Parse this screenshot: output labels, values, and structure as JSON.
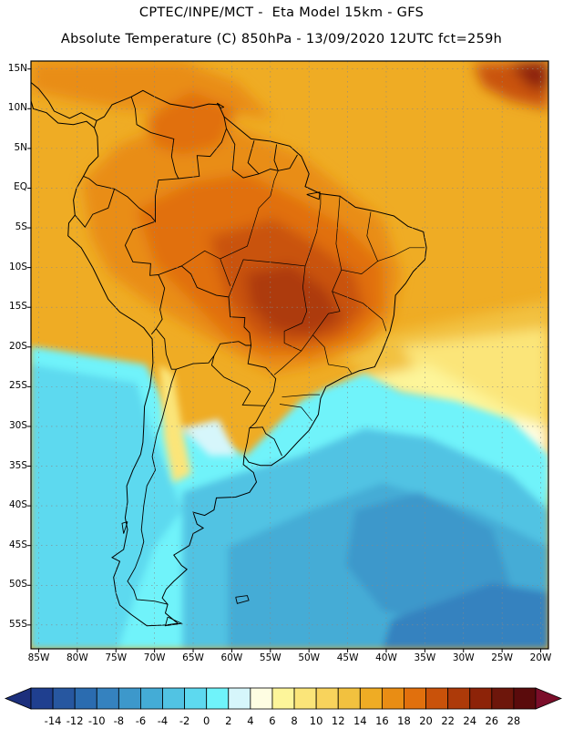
{
  "header": {
    "line1": "CPTEC/INPE/MCT -  Eta Model 15km - GFS",
    "line2": "Absolute Temperature (C) 850hPa - 13/09/2020 12UTC fct=259h"
  },
  "map": {
    "lon_range": [
      -86,
      -19
    ],
    "lat_range": [
      -58,
      16
    ],
    "lat_ticks": [
      {
        "lat": 15,
        "label": "15N"
      },
      {
        "lat": 10,
        "label": "10N"
      },
      {
        "lat": 5,
        "label": "5N"
      },
      {
        "lat": 0,
        "label": "EQ"
      },
      {
        "lat": -5,
        "label": "5S"
      },
      {
        "lat": -10,
        "label": "10S"
      },
      {
        "lat": -15,
        "label": "15S"
      },
      {
        "lat": -20,
        "label": "20S"
      },
      {
        "lat": -25,
        "label": "25S"
      },
      {
        "lat": -30,
        "label": "30S"
      },
      {
        "lat": -35,
        "label": "35S"
      },
      {
        "lat": -40,
        "label": "40S"
      },
      {
        "lat": -45,
        "label": "45S"
      },
      {
        "lat": -50,
        "label": "50S"
      },
      {
        "lat": -55,
        "label": "55S"
      }
    ],
    "lon_ticks": [
      {
        "lon": -85,
        "label": "85W"
      },
      {
        "lon": -80,
        "label": "80W"
      },
      {
        "lon": -75,
        "label": "75W"
      },
      {
        "lon": -70,
        "label": "70W"
      },
      {
        "lon": -65,
        "label": "65W"
      },
      {
        "lon": -60,
        "label": "60W"
      },
      {
        "lon": -55,
        "label": "55W"
      },
      {
        "lon": -50,
        "label": "50W"
      },
      {
        "lon": -45,
        "label": "45W"
      },
      {
        "lon": -40,
        "label": "40W"
      },
      {
        "lon": -35,
        "label": "35W"
      },
      {
        "lon": -30,
        "label": "30W"
      },
      {
        "lon": -25,
        "label": "25W"
      },
      {
        "lon": -20,
        "label": "20W"
      }
    ],
    "coastline": [
      [
        -77.5,
        8.5
      ],
      [
        -76.5,
        9
      ],
      [
        -75.5,
        10.5
      ],
      [
        -73,
        11.5
      ],
      [
        -71.5,
        12.3
      ],
      [
        -70,
        11.5
      ],
      [
        -68,
        10.6
      ],
      [
        -65,
        10.1
      ],
      [
        -63,
        10.6
      ],
      [
        -61.7,
        10.5
      ],
      [
        -61,
        9
      ],
      [
        -59.5,
        7.8
      ],
      [
        -57.5,
        6.2
      ],
      [
        -55,
        5.9
      ],
      [
        -52.5,
        5.3
      ],
      [
        -51,
        4
      ],
      [
        -50,
        1.8
      ],
      [
        -50.5,
        0.2
      ],
      [
        -48.5,
        -0.7
      ],
      [
        -46,
        -1
      ],
      [
        -44,
        -2.4
      ],
      [
        -41.5,
        -2.9
      ],
      [
        -39,
        -3.5
      ],
      [
        -37.2,
        -4.8
      ],
      [
        -35.2,
        -5.5
      ],
      [
        -34.8,
        -7.5
      ],
      [
        -35,
        -9
      ],
      [
        -36.5,
        -10.5
      ],
      [
        -37.5,
        -12
      ],
      [
        -38.8,
        -13.5
      ],
      [
        -39,
        -16
      ],
      [
        -39.5,
        -18
      ],
      [
        -40.5,
        -20.5
      ],
      [
        -41.5,
        -22.5
      ],
      [
        -43.5,
        -23
      ],
      [
        -45.5,
        -23.8
      ],
      [
        -47.8,
        -25
      ],
      [
        -48.5,
        -26.5
      ],
      [
        -48.8,
        -28.5
      ],
      [
        -50,
        -30.5
      ],
      [
        -51.5,
        -32
      ],
      [
        -53.2,
        -33.8
      ],
      [
        -54.9,
        -34.9
      ],
      [
        -56.3,
        -34.9
      ],
      [
        -57.8,
        -34.5
      ],
      [
        -58.4,
        -33.7
      ],
      [
        -58.5,
        -34.8
      ],
      [
        -57.2,
        -35.8
      ],
      [
        -56.8,
        -37
      ],
      [
        -57.7,
        -38.3
      ],
      [
        -59.5,
        -38.9
      ],
      [
        -62,
        -39
      ],
      [
        -62.3,
        -40.5
      ],
      [
        -63.5,
        -41.2
      ],
      [
        -65,
        -40.8
      ],
      [
        -64.5,
        -42.3
      ],
      [
        -63.7,
        -42.8
      ],
      [
        -65,
        -43.5
      ],
      [
        -65.5,
        -45
      ],
      [
        -67.5,
        -46.2
      ],
      [
        -66.5,
        -47.5
      ],
      [
        -65.8,
        -48
      ],
      [
        -67.5,
        -49.5
      ],
      [
        -68.5,
        -50.5
      ],
      [
        -69,
        -51.6
      ],
      [
        -68.3,
        -52.4
      ],
      [
        -68.6,
        -53.5
      ],
      [
        -67,
        -54.8
      ],
      [
        -68.5,
        -55
      ],
      [
        -71,
        -55.1
      ],
      [
        -73,
        -53.7
      ],
      [
        -74.5,
        -52.5
      ],
      [
        -75,
        -51
      ],
      [
        -75.3,
        -49
      ],
      [
        -74.5,
        -47
      ],
      [
        -75.5,
        -46.5
      ],
      [
        -74,
        -45.5
      ],
      [
        -73.5,
        -43
      ],
      [
        -73.8,
        -41.5
      ],
      [
        -73.5,
        -39.5
      ],
      [
        -73.6,
        -37.5
      ],
      [
        -72.8,
        -35.5
      ],
      [
        -71.8,
        -33.5
      ],
      [
        -71.5,
        -32
      ],
      [
        -71.4,
        -30
      ],
      [
        -71.3,
        -27.5
      ],
      [
        -70.6,
        -25
      ],
      [
        -70.2,
        -22
      ],
      [
        -70.3,
        -19
      ],
      [
        -71.4,
        -17.6
      ],
      [
        -72.5,
        -16.8
      ],
      [
        -74.5,
        -15.6
      ],
      [
        -76,
        -14
      ],
      [
        -77,
        -12
      ],
      [
        -78,
        -10
      ],
      [
        -79.5,
        -7.5
      ],
      [
        -81.2,
        -6
      ],
      [
        -81.1,
        -4.4
      ],
      [
        -80.3,
        -3.4
      ],
      [
        -80.5,
        -1.5
      ],
      [
        -80.1,
        0
      ],
      [
        -79.2,
        1.5
      ],
      [
        -78.5,
        2.8
      ],
      [
        -77.3,
        4
      ],
      [
        -77.4,
        6.5
      ],
      [
        -77.8,
        7.6
      ],
      [
        -77.5,
        8.5
      ]
    ],
    "central_america": [
      [
        -77.5,
        8.5
      ],
      [
        -79.5,
        9.5
      ],
      [
        -81,
        8.8
      ],
      [
        -83,
        9.7
      ],
      [
        -83.7,
        10.9
      ],
      [
        -85,
        12.5
      ],
      [
        -86,
        13.3
      ]
    ],
    "central_america_pacific": [
      [
        -77.8,
        7.6
      ],
      [
        -78.8,
        8.4
      ],
      [
        -80.5,
        8
      ],
      [
        -82.5,
        8.2
      ],
      [
        -84,
        9.5
      ],
      [
        -85.7,
        10
      ],
      [
        -86,
        11
      ]
    ],
    "borders": [
      [
        [
          -73,
          11.5
        ],
        [
          -72.5,
          10
        ],
        [
          -72.3,
          8
        ],
        [
          -70.5,
          7
        ],
        [
          -67.5,
          6.2
        ],
        [
          -67.8,
          4
        ],
        [
          -67.3,
          2
        ],
        [
          -66.9,
          1.2
        ],
        [
          -69.5,
          1
        ],
        [
          -69.9,
          -1
        ],
        [
          -69.9,
          -4.2
        ],
        [
          -70.5,
          -3.5
        ],
        [
          -72,
          -2.5
        ],
        [
          -73.5,
          -1.1
        ],
        [
          -75.2,
          -0.1
        ],
        [
          -77.5,
          0.4
        ],
        [
          -78.5,
          1.2
        ],
        [
          -79.2,
          1.5
        ]
      ],
      [
        [
          -61,
          9
        ],
        [
          -60.7,
          7.5
        ],
        [
          -61.3,
          5.8
        ],
        [
          -62.8,
          4
        ],
        [
          -64.5,
          4.1
        ],
        [
          -64.2,
          1.5
        ],
        [
          -66.9,
          1.2
        ]
      ],
      [
        [
          -60.7,
          7.5
        ],
        [
          -59.6,
          5.5
        ],
        [
          -59.9,
          2.3
        ],
        [
          -58.5,
          1.3
        ],
        [
          -56.5,
          1.8
        ],
        [
          -55,
          2.4
        ],
        [
          -54,
          2.2
        ],
        [
          -52.5,
          2.5
        ],
        [
          -51.5,
          4.2
        ]
      ],
      [
        [
          -57.1,
          6
        ],
        [
          -57.9,
          3.2
        ],
        [
          -56.5,
          1.8
        ]
      ],
      [
        [
          -54.2,
          5.5
        ],
        [
          -54.5,
          3.5
        ],
        [
          -54,
          2.2
        ]
      ],
      [
        [
          -69.9,
          -4.2
        ],
        [
          -72.8,
          -5.2
        ],
        [
          -73.8,
          -7.2
        ],
        [
          -72.8,
          -9.3
        ],
        [
          -70.5,
          -9.5
        ],
        [
          -70.6,
          -11
        ],
        [
          -69.5,
          -10.9
        ],
        [
          -68.7,
          -12.6
        ],
        [
          -69.3,
          -15.3
        ],
        [
          -69,
          -16.5
        ],
        [
          -69.8,
          -17.7
        ],
        [
          -70.4,
          -18.4
        ]
      ],
      [
        [
          -80.3,
          -3.4
        ],
        [
          -79,
          -4.9
        ],
        [
          -78,
          -3.3
        ],
        [
          -76,
          -2.5
        ],
        [
          -75.2,
          -0.1
        ]
      ],
      [
        [
          -69.5,
          -10.9
        ],
        [
          -66.5,
          -9.8
        ],
        [
          -65.3,
          -10.8
        ],
        [
          -64.5,
          -12.5
        ],
        [
          -62,
          -13.5
        ],
        [
          -60.4,
          -13.7
        ],
        [
          -60.2,
          -16.2
        ],
        [
          -58.3,
          -16.3
        ],
        [
          -58.4,
          -17.5
        ],
        [
          -57.7,
          -18.2
        ],
        [
          -57.5,
          -19.8
        ]
      ],
      [
        [
          -69.8,
          -17.7
        ],
        [
          -68.7,
          -19
        ],
        [
          -68.5,
          -20.9
        ],
        [
          -67.8,
          -22.8
        ],
        [
          -67.2,
          -22.8
        ],
        [
          -65,
          -22.1
        ],
        [
          -63,
          -22
        ],
        [
          -62.3,
          -21.1
        ],
        [
          -61.5,
          -19.6
        ],
        [
          -59.1,
          -19.3
        ],
        [
          -58.2,
          -19.8
        ],
        [
          -57.5,
          -19.8
        ]
      ],
      [
        [
          -62.3,
          -21.1
        ],
        [
          -62.6,
          -22.3
        ],
        [
          -61,
          -23.8
        ],
        [
          -58,
          -25.2
        ],
        [
          -57.6,
          -25.6
        ],
        [
          -58.6,
          -27.3
        ],
        [
          -55.7,
          -27.4
        ],
        [
          -54.6,
          -25.6
        ],
        [
          -54.3,
          -24
        ],
        [
          -55.6,
          -22.6
        ],
        [
          -57.9,
          -22.1
        ],
        [
          -57.5,
          -19.8
        ]
      ],
      [
        [
          -67.2,
          -22.8
        ],
        [
          -67.8,
          -24.5
        ],
        [
          -68.5,
          -27.1
        ],
        [
          -69,
          -29
        ],
        [
          -69.7,
          -31
        ],
        [
          -70.3,
          -33.8
        ],
        [
          -69.9,
          -35.5
        ],
        [
          -71,
          -37.5
        ],
        [
          -71.4,
          -40
        ],
        [
          -71.7,
          -43
        ],
        [
          -71.4,
          -44.5
        ],
        [
          -71.8,
          -46
        ],
        [
          -72.5,
          -47.8
        ],
        [
          -73.5,
          -49.5
        ],
        [
          -72.7,
          -50.6
        ],
        [
          -72.3,
          -51.8
        ],
        [
          -70,
          -52
        ],
        [
          -68.3,
          -52.4
        ]
      ],
      [
        [
          -58.4,
          -33.7
        ],
        [
          -58,
          -32
        ],
        [
          -57.7,
          -30.2
        ],
        [
          -56,
          -30.1
        ],
        [
          -55.6,
          -30.9
        ],
        [
          -54.5,
          -31.6
        ],
        [
          -53.5,
          -33.7
        ]
      ],
      [
        [
          -55.7,
          -27.4
        ],
        [
          -56.9,
          -29.5
        ],
        [
          -57.7,
          -30.2
        ]
      ]
    ],
    "states": [
      [
        [
          -54,
          2.2
        ],
        [
          -54.5,
          1
        ],
        [
          -55,
          -1
        ],
        [
          -56.5,
          -2.5
        ],
        [
          -58,
          -7.3
        ],
        [
          -61.5,
          -8.9
        ],
        [
          -63.5,
          -7.9
        ],
        [
          -66.5,
          -9.8
        ]
      ],
      [
        [
          -60.4,
          -13.7
        ],
        [
          -58.5,
          -9
        ],
        [
          -54.2,
          -9.4
        ],
        [
          -50.5,
          -9.8
        ],
        [
          -50.8,
          -12.5
        ],
        [
          -50.3,
          -15.5
        ],
        [
          -50.9,
          -17
        ],
        [
          -53.2,
          -18
        ],
        [
          -53.2,
          -19.5
        ],
        [
          -51,
          -20.5
        ],
        [
          -53.5,
          -22.7
        ],
        [
          -54.5,
          -23.5
        ]
      ],
      [
        [
          -50.5,
          -9.8
        ],
        [
          -49,
          -5.5
        ],
        [
          -48.5,
          -2
        ],
        [
          -48.5,
          -0.7
        ]
      ],
      [
        [
          -46,
          -1
        ],
        [
          -46.5,
          -7
        ],
        [
          -45.8,
          -10.3
        ],
        [
          -47,
          -13
        ],
        [
          -46,
          -15.5
        ]
      ],
      [
        [
          -42,
          -3
        ],
        [
          -42.5,
          -6
        ],
        [
          -41.1,
          -9.2
        ],
        [
          -43.2,
          -10.8
        ],
        [
          -45.8,
          -10.3
        ]
      ],
      [
        [
          -41.1,
          -9.2
        ],
        [
          -39,
          -8.5
        ],
        [
          -37,
          -7.5
        ],
        [
          -35,
          -7.5
        ]
      ],
      [
        [
          -46,
          -15.5
        ],
        [
          -47.5,
          -15.8
        ],
        [
          -49.5,
          -18.5
        ],
        [
          -51,
          -20.5
        ]
      ],
      [
        [
          -47,
          -13
        ],
        [
          -43,
          -14.5
        ],
        [
          -40.5,
          -16.5
        ],
        [
          -40,
          -18
        ]
      ],
      [
        [
          -49.5,
          -18.5
        ],
        [
          -48,
          -20
        ],
        [
          -47.5,
          -22.2
        ],
        [
          -45,
          -22.6
        ],
        [
          -44.5,
          -23.3
        ]
      ],
      [
        [
          -53.5,
          -26.3
        ],
        [
          -50,
          -26
        ],
        [
          -48.6,
          -26
        ]
      ],
      [
        [
          -53.8,
          -27.2
        ],
        [
          -51,
          -27.6
        ],
        [
          -49.6,
          -29.3
        ]
      ],
      [
        [
          -61.5,
          -8.9
        ],
        [
          -60.2,
          -12.3
        ]
      ]
    ],
    "islands": [
      [
        [
          -61,
          10.2
        ],
        [
          -61.9,
          10.7
        ],
        [
          -61.5,
          10.1
        ],
        [
          -61,
          10.2
        ]
      ],
      [
        [
          -59.5,
          -51.5
        ],
        [
          -58,
          -51.3
        ],
        [
          -57.8,
          -51.9
        ],
        [
          -59.3,
          -52.3
        ],
        [
          -59.5,
          -51.5
        ]
      ],
      [
        [
          -68.3,
          -54
        ],
        [
          -66.5,
          -54.8
        ],
        [
          -68.6,
          -55.1
        ],
        [
          -68.3,
          -54
        ]
      ],
      [
        [
          -73.5,
          -42
        ],
        [
          -74.2,
          -42.2
        ],
        [
          -74,
          -43.5
        ],
        [
          -73.5,
          -42
        ]
      ],
      [
        [
          -50.3,
          -0.8
        ],
        [
          -48.7,
          -1.4
        ],
        [
          -48.6,
          -0.5
        ],
        [
          -50.3,
          -0.8
        ]
      ]
    ]
  },
  "colorbar": {
    "labels": [
      "-14",
      "-12",
      "-10",
      "-8",
      "-6",
      "-4",
      "-2",
      "0",
      "2",
      "4",
      "6",
      "8",
      "10",
      "12",
      "14",
      "16",
      "18",
      "20",
      "22",
      "24",
      "26",
      "28"
    ],
    "colors": [
      "#1f3f8f",
      "#2757a0",
      "#2b6cb0",
      "#3582bf",
      "#3d98cb",
      "#44acd6",
      "#51c3e3",
      "#5dd9ef",
      "#6ff3fa",
      "#d6f6fb",
      "#fefde2",
      "#fdf59a",
      "#fbe579",
      "#f8d35c",
      "#f2c13f",
      "#efac24",
      "#e98d14",
      "#e1700d",
      "#c9520a",
      "#ad3a09",
      "#8d2308",
      "#6d160b",
      "#5a0b0c"
    ],
    "under_color": "#1c2f7c",
    "over_color": "#7b0e2a"
  }
}
